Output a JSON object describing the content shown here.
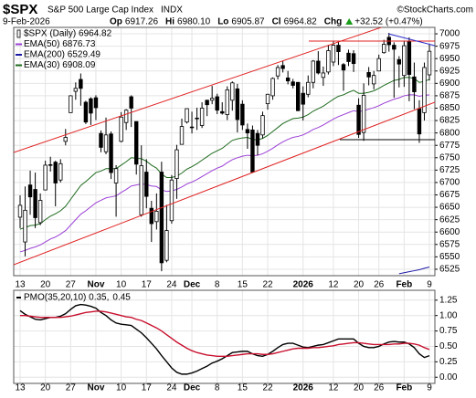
{
  "header": {
    "symbol": "$SPX",
    "name": "S&P 500 Large Cap Index",
    "exchange": "INDX",
    "copyright": "©StockCharts.com",
    "date": "9-Feb-2026",
    "quote": [
      {
        "label": "Op",
        "value": "6917.26"
      },
      {
        "label": "Hi",
        "value": "6980.10"
      },
      {
        "label": "Lo",
        "value": "6905.87"
      },
      {
        "label": "Cl",
        "value": "6964.82"
      },
      {
        "label": "Chg",
        "value": "+32.52 (+0.47%)"
      }
    ]
  },
  "chart_data": [
    {
      "type": "candlestick",
      "name": "$SPX (Daily) 6964.82",
      "categories": [
        "13",
        null,
        null,
        null,
        null,
        "20",
        null,
        null,
        null,
        null,
        "27",
        null,
        null,
        null,
        null,
        "Nov",
        null,
        null,
        null,
        null,
        "10",
        null,
        null,
        null,
        null,
        "17",
        null,
        null,
        null,
        null,
        "24",
        null,
        null,
        null,
        "Dec",
        null,
        null,
        null,
        null,
        "8",
        null,
        null,
        null,
        null,
        "15",
        null,
        null,
        null,
        null,
        "22",
        null,
        null,
        null,
        null,
        null,
        null,
        "2026",
        null,
        null,
        null,
        null,
        null,
        "12",
        null,
        null,
        null,
        null,
        "20",
        null,
        null,
        null,
        "26",
        null,
        null,
        null,
        null,
        "Feb",
        null,
        null,
        null,
        null,
        "9"
      ],
      "open": [
        6630,
        6580,
        6695,
        6686,
        6619,
        6685,
        6736,
        6741,
        6705,
        6783,
        6841,
        6884,
        6908,
        6862,
        6869,
        6871,
        6799,
        6762,
        6798,
        6699,
        6783,
        6821,
        6873,
        6823,
        6635,
        6721,
        6648,
        6621,
        6721,
        6543,
        6623,
        6708,
        6777,
        6822,
        6812,
        6830,
        6815,
        6866,
        6866,
        6873,
        6843,
        6837,
        6866,
        6889,
        6858,
        6807,
        6806,
        6799,
        6796,
        6859,
        6875,
        6915,
        6936,
        6911,
        6903,
        6902,
        6880,
        6878,
        6902,
        6945,
        6912,
        6923,
        6943,
        6977,
        6938,
        6961,
        6960,
        6856,
        6801,
        6922,
        6899,
        6925,
        6962,
        6993,
        6977,
        6948,
        6916,
        6985,
        6913,
        6849,
        6841,
        6917.26
      ],
      "high": [
        6674,
        6692,
        6724,
        6720,
        6678,
        6744,
        6752,
        6744,
        6747,
        6808,
        6876,
        6902,
        6920,
        6865,
        6872,
        6876,
        6805,
        6831,
        6803,
        6735,
        6842,
        6848,
        6876,
        6823,
        6775,
        6747,
        6663,
        6678,
        6742,
        6655,
        6715,
        6776,
        6829,
        6849,
        6843,
        6851,
        6862,
        6867,
        6895,
        6879,
        6862,
        6894,
        6904,
        6899,
        6866,
        6819,
        6815,
        6806,
        6843,
        6879,
        6912,
        6937,
        6946,
        6925,
        6909,
        6903,
        6894,
        6916,
        6947,
        6965,
        6934,
        6978,
        6986,
        6986,
        6941,
        6968,
        6967,
        6870,
        6900,
        6933,
        6925,
        6958,
        6988,
        7002,
        6983,
        6955,
        6986,
        6993,
        6942,
        6866,
        6942,
        6980.1
      ],
      "low": [
        6608,
        6551,
        6635,
        6608,
        6614,
        6684,
        6722,
        6652,
        6700,
        6775,
        6841,
        6867,
        6855,
        6818,
        6816,
        6826,
        6761,
        6757,
        6707,
        6631,
        6781,
        6806,
        6812,
        6716,
        6631,
        6648,
        6580,
        6605,
        6521,
        6539,
        6617,
        6667,
        6777,
        6819,
        6799,
        6806,
        6810,
        6834,
        6858,
        6838,
        6837,
        6826,
        6845,
        6801,
        6806,
        6768,
        6720,
        6755,
        6789,
        6847,
        6867,
        6908,
        6922,
        6898,
        6890,
        6844,
        6825,
        6872,
        6890,
        6918,
        6895,
        6918,
        6935,
        6937,
        6885,
        6935,
        6923,
        6790,
        6784,
        6896,
        6888,
        6925,
        6960,
        6964,
        6871,
        6892,
        6893,
        6864,
        6848,
        6780,
        6825,
        6905.87
      ],
      "close": [
        6654,
        6644,
        6671,
        6629,
        6664,
        6735,
        6735,
        6699,
        6738,
        6791,
        6875,
        6890,
        6890,
        6822,
        6840,
        6851,
        6771,
        6796,
        6720,
        6728,
        6832,
        6846,
        6850,
        6737,
        6734,
        6672,
        6617,
        6642,
        6538,
        6603,
        6705,
        6766,
        6813,
        6849,
        6812,
        6829,
        6850,
        6857,
        6870,
        6846,
        6840,
        6887,
        6901,
        6827,
        6816,
        6800,
        6721,
        6775,
        6835,
        6878,
        6910,
        6932,
        6930,
        6905,
        6896,
        6845,
        6858,
        6902,
        6945,
        6921,
        6921,
        6966,
        6977,
        6964,
        6927,
        6944,
        6940,
        6797,
        6876,
        6913,
        6916,
        6950,
        6979,
        6978,
        6969,
        6939,
        6976,
        6918,
        6883,
        6798,
        6932,
        6964.82
      ],
      "up_color": "#ffffff",
      "down_color": "#000000",
      "series": [
        {
          "name": "EMA(50) 6876.73",
          "color": "#9b3fd6",
          "values": [
            6560,
            6563,
            6567,
            6570,
            6574,
            6580,
            6586,
            6590,
            6596,
            6603,
            6614,
            6625,
            6636,
            6643,
            6651,
            6659,
            6664,
            6669,
            6671,
            6673,
            6680,
            6686,
            6693,
            6695,
            6697,
            6696,
            6693,
            6692,
            6685,
            6682,
            6683,
            6686,
            6691,
            6697,
            6701,
            6706,
            6712,
            6718,
            6724,
            6729,
            6733,
            6740,
            6746,
            6750,
            6753,
            6755,
            6754,
            6755,
            6758,
            6763,
            6769,
            6776,
            6782,
            6787,
            6791,
            6793,
            6796,
            6801,
            6807,
            6811,
            6816,
            6822,
            6828,
            6833,
            6837,
            6841,
            6845,
            6843,
            6845,
            6848,
            6851,
            6855,
            6860,
            6864,
            6868,
            6871,
            6875,
            6877,
            6877,
            6874,
            6876,
            6876.73
          ]
        },
        {
          "name": "EMA(200) 6529.49",
          "color": "#1a1aa6",
          "values": [
            null,
            null,
            null,
            null,
            null,
            null,
            null,
            null,
            null,
            null,
            null,
            null,
            null,
            null,
            null,
            null,
            null,
            null,
            null,
            null,
            null,
            null,
            null,
            null,
            null,
            null,
            null,
            null,
            null,
            null,
            null,
            null,
            null,
            null,
            null,
            null,
            null,
            null,
            null,
            null,
            null,
            null,
            null,
            null,
            null,
            null,
            null,
            null,
            null,
            null,
            null,
            null,
            null,
            null,
            null,
            null,
            null,
            null,
            null,
            null,
            null,
            null,
            null,
            null,
            null,
            null,
            null,
            null,
            null,
            null,
            null,
            null,
            null,
            null,
            null,
            6516,
            6518,
            6520,
            6522,
            6524,
            6527,
            6529.49
          ]
        },
        {
          "name": "EMA(30) 6908.09",
          "color": "#1e6b1e",
          "values": [
            6606,
            6609,
            6613,
            6614,
            6617,
            6625,
            6632,
            6637,
            6643,
            6652,
            6666,
            6680,
            6694,
            6702,
            6711,
            6720,
            6723,
            6728,
            6728,
            6728,
            6735,
            6742,
            6750,
            6749,
            6748,
            6743,
            6735,
            6729,
            6717,
            6710,
            6710,
            6713,
            6719,
            6727,
            6732,
            6738,
            6745,
            6752,
            6759,
            6764,
            6769,
            6777,
            6785,
            6788,
            6790,
            6791,
            6787,
            6786,
            6789,
            6795,
            6803,
            6811,
            6819,
            6824,
            6829,
            6830,
            6832,
            6837,
            6844,
            6849,
            6854,
            6861,
            6868,
            6874,
            6877,
            6882,
            6886,
            6880,
            6880,
            6882,
            6885,
            6890,
            6896,
            6901,
            6906,
            6908,
            6912,
            6912,
            6910,
            6902,
            6904,
            6908.09
          ]
        }
      ],
      "ylim": [
        6512,
        7013
      ],
      "yticks": [
        6525,
        6550,
        6575,
        6600,
        6625,
        6650,
        6675,
        6700,
        6725,
        6750,
        6775,
        6800,
        6825,
        6850,
        6875,
        6900,
        6925,
        6950,
        6975,
        7000
      ],
      "grid": true
    },
    {
      "type": "line",
      "categories": [
        "13",
        null,
        null,
        null,
        null,
        "20",
        null,
        null,
        null,
        null,
        "27",
        null,
        null,
        null,
        null,
        "Nov",
        null,
        null,
        null,
        null,
        "10",
        null,
        null,
        null,
        null,
        "17",
        null,
        null,
        null,
        null,
        "24",
        null,
        null,
        null,
        "Dec",
        null,
        null,
        null,
        null,
        "8",
        null,
        null,
        null,
        null,
        "15",
        null,
        null,
        null,
        null,
        "22",
        null,
        null,
        null,
        null,
        null,
        null,
        "2026",
        null,
        null,
        null,
        null,
        null,
        "12",
        null,
        null,
        null,
        null,
        "20",
        null,
        null,
        null,
        "26",
        null,
        null,
        null,
        null,
        "Feb",
        null,
        null,
        null,
        null,
        "9"
      ],
      "series": [
        {
          "name": "PMO(35,20,10) 0.35,",
          "color": "#000000",
          "values": [
            1.08,
            1.02,
            0.98,
            0.94,
            0.93,
            0.95,
            0.97,
            0.97,
            0.99,
            1.03,
            1.1,
            1.16,
            1.18,
            1.17,
            1.15,
            1.12,
            1.05,
            1.0,
            0.93,
            0.88,
            0.86,
            0.85,
            0.84,
            0.78,
            0.72,
            0.64,
            0.55,
            0.46,
            0.35,
            0.25,
            0.15,
            0.08,
            0.05,
            0.05,
            0.07,
            0.1,
            0.14,
            0.18,
            0.23,
            0.26,
            0.3,
            0.35,
            0.4,
            0.41,
            0.42,
            0.42,
            0.38,
            0.35,
            0.34,
            0.37,
            0.42,
            0.48,
            0.53,
            0.55,
            0.55,
            0.52,
            0.49,
            0.48,
            0.5,
            0.52,
            0.53,
            0.56,
            0.59,
            0.62,
            0.62,
            0.62,
            0.62,
            0.55,
            0.5,
            0.48,
            0.48,
            0.5,
            0.54,
            0.57,
            0.58,
            0.57,
            0.57,
            0.54,
            0.48,
            0.38,
            0.32,
            0.35
          ]
        },
        {
          "name": "0.45",
          "color": "#c8102e",
          "values": [
            1.0,
            1.0,
            0.99,
            0.98,
            0.97,
            0.97,
            0.97,
            0.97,
            0.97,
            0.98,
            0.99,
            1.01,
            1.03,
            1.05,
            1.06,
            1.07,
            1.07,
            1.06,
            1.04,
            1.02,
            1.0,
            0.98,
            0.97,
            0.94,
            0.92,
            0.88,
            0.84,
            0.8,
            0.75,
            0.69,
            0.63,
            0.57,
            0.52,
            0.47,
            0.43,
            0.4,
            0.38,
            0.36,
            0.35,
            0.34,
            0.34,
            0.34,
            0.35,
            0.36,
            0.37,
            0.38,
            0.38,
            0.38,
            0.37,
            0.37,
            0.38,
            0.4,
            0.42,
            0.44,
            0.46,
            0.47,
            0.47,
            0.47,
            0.48,
            0.48,
            0.49,
            0.5,
            0.51,
            0.53,
            0.54,
            0.55,
            0.56,
            0.56,
            0.55,
            0.54,
            0.53,
            0.53,
            0.53,
            0.53,
            0.54,
            0.54,
            0.55,
            0.55,
            0.54,
            0.52,
            0.48,
            0.45
          ]
        }
      ],
      "ylim": [
        -0.1,
        1.41
      ],
      "yticks": [
        {
          "value": 0,
          "label": "0.00"
        },
        {
          "value": 0.25,
          "label": "0.25"
        },
        {
          "value": 0.5,
          "label": "0.50"
        },
        {
          "value": 0.75,
          "label": "0.75"
        },
        {
          "value": 1,
          "label": "1.00"
        },
        {
          "value": 1.25,
          "label": "1.25"
        }
      ],
      "grid": true
    }
  ]
}
